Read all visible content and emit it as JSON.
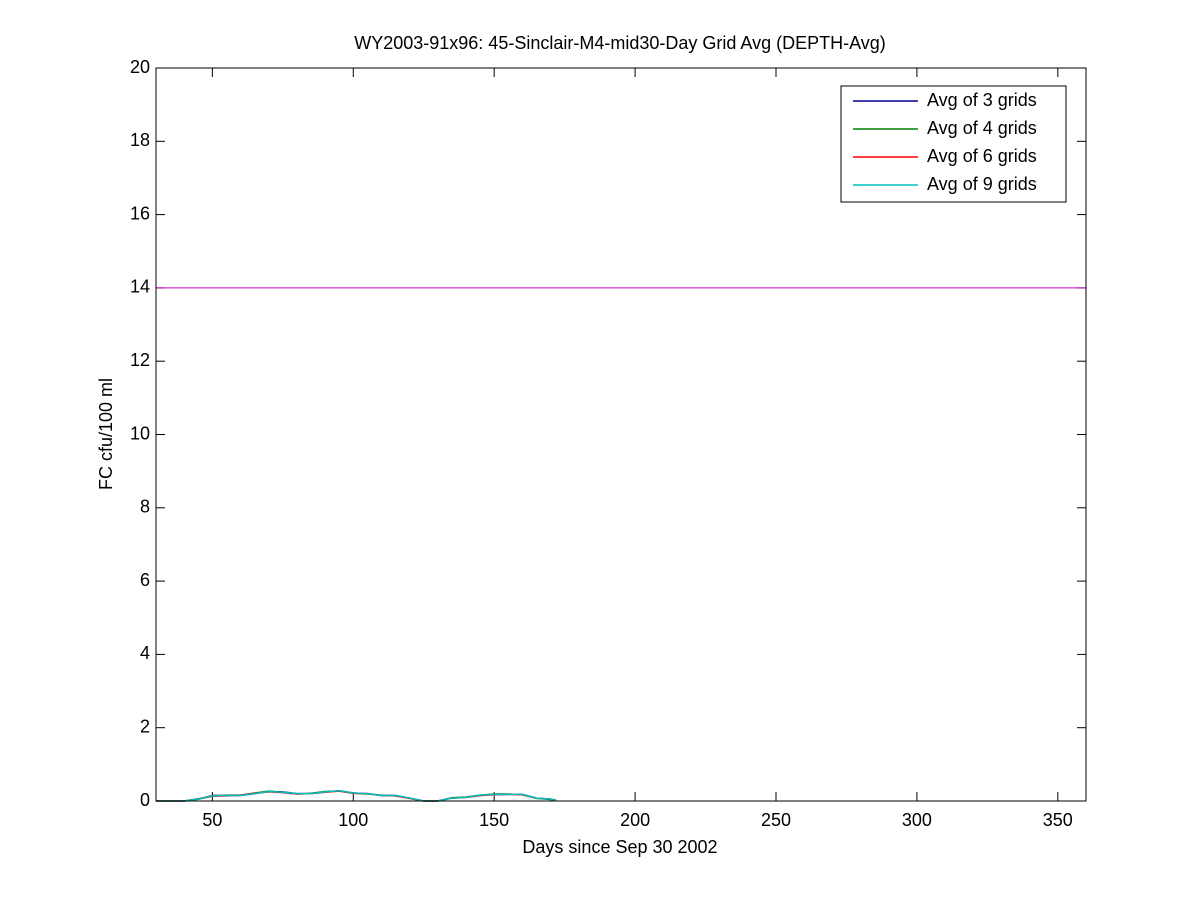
{
  "chart_data": {
    "type": "line",
    "title": "WY2003-91x96: 45-Sinclair-M4-mid30-Day Grid Avg (DEPTH-Avg)",
    "x_label": "Days since Sep 30 2002",
    "y_label": "FC cfu/100 ml",
    "x": [
      30,
      40,
      45,
      50,
      55,
      60,
      65,
      70,
      75,
      80,
      85,
      90,
      95,
      100,
      105,
      110,
      115,
      120,
      125,
      130,
      135,
      140,
      145,
      150,
      155,
      160,
      165,
      170,
      172
    ],
    "series": [
      {
        "name": "Avg of 3 grids",
        "color": "#00008b",
        "values": [
          0,
          0,
          0.05,
          0.15,
          0.15,
          0.15,
          0.2,
          0.26,
          0.25,
          0.2,
          0.2,
          0.25,
          0.28,
          0.22,
          0.2,
          0.15,
          0.15,
          0.08,
          0,
          0,
          0.08,
          0.1,
          0.15,
          0.18,
          0.18,
          0.18,
          0.08,
          0.05,
          0.02
        ]
      },
      {
        "name": "Avg of 4 grids",
        "color": "#008000",
        "values": [
          0,
          0,
          0.06,
          0.14,
          0.16,
          0.16,
          0.22,
          0.27,
          0.24,
          0.19,
          0.21,
          0.26,
          0.27,
          0.21,
          0.19,
          0.16,
          0.14,
          0.07,
          0,
          0,
          0.09,
          0.11,
          0.16,
          0.19,
          0.19,
          0.17,
          0.07,
          0.04,
          0.02
        ]
      },
      {
        "name": "Avg of 6 grids",
        "color": "#ff0000",
        "values": [
          0,
          0,
          0.05,
          0.13,
          0.14,
          0.16,
          0.21,
          0.25,
          0.23,
          0.19,
          0.2,
          0.24,
          0.27,
          0.21,
          0.2,
          0.15,
          0.14,
          0.07,
          0,
          0,
          0.08,
          0.1,
          0.15,
          0.17,
          0.18,
          0.17,
          0.08,
          0.05,
          0.02
        ]
      },
      {
        "name": "Avg of 9 grids",
        "color": "#00bfbf",
        "values": [
          0,
          0,
          0.05,
          0.14,
          0.15,
          0.15,
          0.2,
          0.26,
          0.24,
          0.2,
          0.2,
          0.25,
          0.28,
          0.22,
          0.2,
          0.15,
          0.15,
          0.08,
          0,
          0,
          0.08,
          0.1,
          0.16,
          0.18,
          0.18,
          0.18,
          0.08,
          0.05,
          0.02
        ]
      }
    ],
    "hlines": [
      {
        "value": 14,
        "color": "#cc00cc"
      }
    ],
    "xlim": [
      30,
      360
    ],
    "xticks": [
      50,
      100,
      150,
      200,
      250,
      300,
      350
    ],
    "ylim": [
      0,
      20
    ],
    "yticks": [
      0,
      2,
      4,
      6,
      8,
      10,
      12,
      14,
      16,
      18,
      20
    ],
    "legend": "northeast"
  }
}
